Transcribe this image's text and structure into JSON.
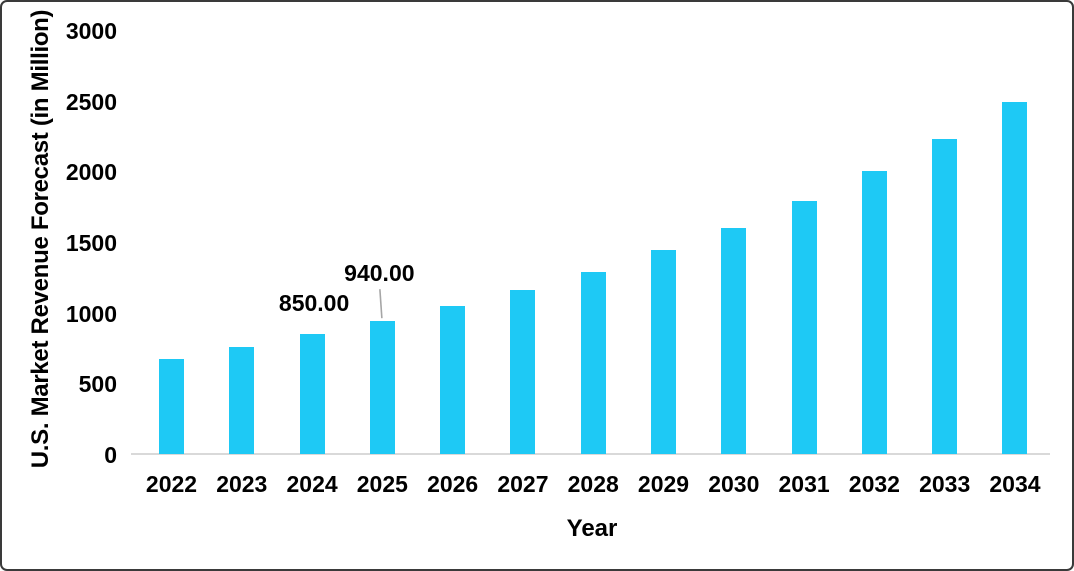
{
  "chart_data": {
    "type": "bar",
    "title": "",
    "xlabel": "Year",
    "ylabel": "U.S. Market Revenue Forecast (in Million)",
    "categories": [
      "2022",
      "2023",
      "2024",
      "2025",
      "2026",
      "2027",
      "2028",
      "2029",
      "2030",
      "2031",
      "2032",
      "2033",
      "2034"
    ],
    "values": [
      670,
      760,
      850,
      940,
      1050,
      1160,
      1290,
      1440,
      1600,
      1790,
      2000,
      2230,
      2490
    ],
    "ylim": [
      0,
      3000
    ],
    "yticks": [
      "0",
      "500",
      "1000",
      "1500",
      "2000",
      "2500",
      "3000"
    ],
    "ytick_values": [
      0,
      500,
      1000,
      1500,
      2000,
      2500,
      3000
    ],
    "grid": false,
    "legend": false,
    "data_labels": [
      {
        "category": "2024",
        "text": "850.00",
        "leader_line": false
      },
      {
        "category": "2025",
        "text": "940.00",
        "leader_line": true
      }
    ],
    "colors": {
      "bar": "#1ec9f5",
      "axis_line": "#d9d9d9",
      "leader_line": "#a6a6a6",
      "text": "#000000",
      "background": "#ffffff"
    }
  }
}
